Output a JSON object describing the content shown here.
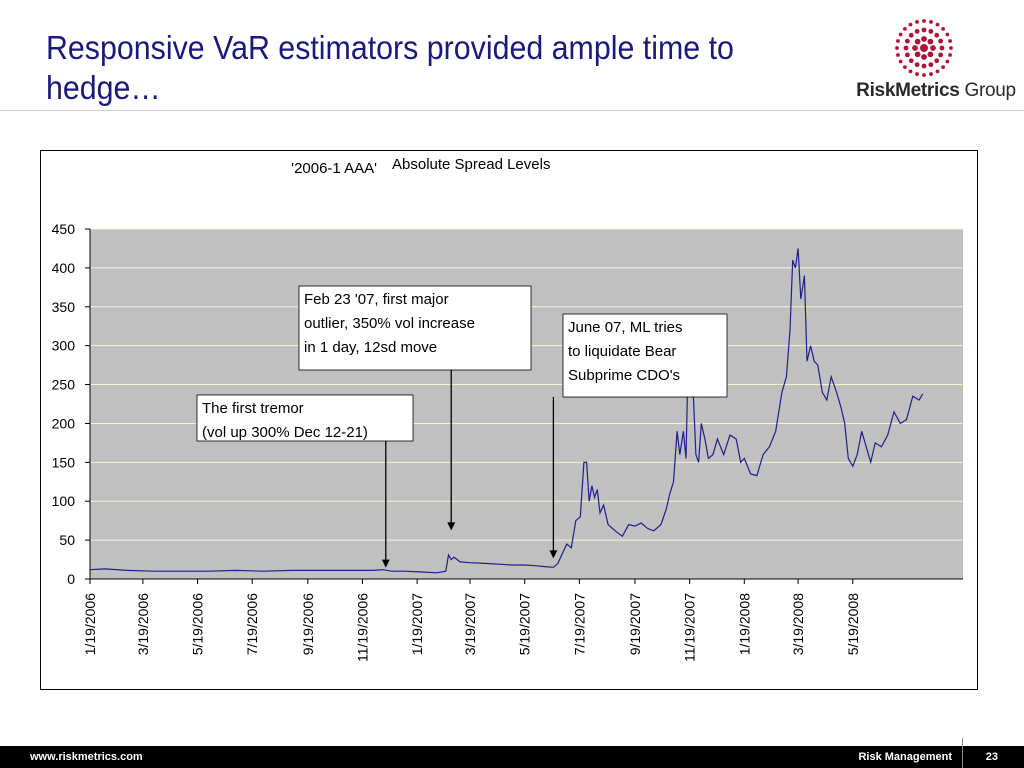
{
  "slide": {
    "title": "Responsive VaR estimators provided ample time to hedge…"
  },
  "logo": {
    "brand_bold": "RiskMetrics",
    "brand_regular": " Group",
    "color": "#b0123a"
  },
  "footer": {
    "url": "www.riskmetrics.com",
    "section": "Risk Management",
    "page": "23"
  },
  "chart_data": {
    "type": "line",
    "series_label": "'2006-1 AAA'",
    "title": "Absolute Spread Levels",
    "ylim": [
      0,
      450
    ],
    "yticks": [
      0,
      50,
      100,
      150,
      200,
      250,
      300,
      350,
      400,
      450
    ],
    "x_range": [
      "1/19/2006",
      "9/19/2008"
    ],
    "xtick_labels": [
      "1/19/2006",
      "3/19/2006",
      "5/19/2006",
      "7/19/2006",
      "9/19/2006",
      "11/19/2006",
      "1/19/2007",
      "3/19/2007",
      "5/19/2007",
      "7/19/2007",
      "9/19/2007",
      "11/19/2007",
      "1/19/2008",
      "3/19/2008",
      "5/19/2008"
    ],
    "grid": true,
    "plot_background": "#c0c0c0",
    "line_color": "#1f1f8c",
    "series": [
      {
        "values": [
          [
            "1/19/2006",
            12
          ],
          [
            "2/5/2006",
            13
          ],
          [
            "3/1/2006",
            11
          ],
          [
            "4/1/2006",
            10
          ],
          [
            "5/1/2006",
            10
          ],
          [
            "6/1/2006",
            10
          ],
          [
            "7/1/2006",
            11
          ],
          [
            "8/1/2006",
            10
          ],
          [
            "9/1/2006",
            11
          ],
          [
            "10/1/2006",
            11
          ],
          [
            "11/1/2006",
            11
          ],
          [
            "12/1/2006",
            11
          ],
          [
            "12/12/2006",
            12
          ],
          [
            "12/21/2006",
            10
          ],
          [
            "1/5/2007",
            10
          ],
          [
            "1/25/2007",
            9
          ],
          [
            "2/10/2007",
            8
          ],
          [
            "2/20/2007",
            10
          ],
          [
            "2/23/2007",
            31
          ],
          [
            "2/26/2007",
            25
          ],
          [
            "3/1/2007",
            28
          ],
          [
            "3/8/2007",
            22
          ],
          [
            "3/19/2007",
            21
          ],
          [
            "4/5/2007",
            20
          ],
          [
            "4/20/2007",
            19
          ],
          [
            "5/5/2007",
            18
          ],
          [
            "5/19/2007",
            18
          ],
          [
            "6/1/2007",
            17
          ],
          [
            "6/10/2007",
            16
          ],
          [
            "6/20/2007",
            15
          ],
          [
            "6/25/2007",
            20
          ],
          [
            "7/1/2007",
            35
          ],
          [
            "7/5/2007",
            45
          ],
          [
            "7/10/2007",
            40
          ],
          [
            "7/15/2007",
            75
          ],
          [
            "7/20/2007",
            80
          ],
          [
            "7/24/2007",
            150
          ],
          [
            "7/27/2007",
            150
          ],
          [
            "7/30/2007",
            100
          ],
          [
            "8/2/2007",
            120
          ],
          [
            "8/5/2007",
            105
          ],
          [
            "8/8/2007",
            115
          ],
          [
            "8/11/2007",
            85
          ],
          [
            "8/15/2007",
            95
          ],
          [
            "8/20/2007",
            70
          ],
          [
            "8/25/2007",
            65
          ],
          [
            "8/30/2007",
            60
          ],
          [
            "9/5/2007",
            55
          ],
          [
            "9/12/2007",
            70
          ],
          [
            "9/19/2007",
            68
          ],
          [
            "9/26/2007",
            72
          ],
          [
            "10/3/2007",
            65
          ],
          [
            "10/10/2007",
            62
          ],
          [
            "10/18/2007",
            70
          ],
          [
            "10/24/2007",
            90
          ],
          [
            "10/28/2007",
            110
          ],
          [
            "11/1/2007",
            125
          ],
          [
            "11/5/2007",
            190
          ],
          [
            "11/8/2007",
            160
          ],
          [
            "11/12/2007",
            190
          ],
          [
            "11/15/2007",
            155
          ],
          [
            "11/17/2007",
            262
          ],
          [
            "11/20/2007",
            260
          ],
          [
            "11/23/2007",
            240
          ],
          [
            "11/26/2007",
            160
          ],
          [
            "11/29/2007",
            150
          ],
          [
            "12/2/2007",
            200
          ],
          [
            "12/6/2007",
            180
          ],
          [
            "12/10/2007",
            155
          ],
          [
            "12/15/2007",
            160
          ],
          [
            "12/20/2007",
            180
          ],
          [
            "12/27/2007",
            160
          ],
          [
            "1/3/2008",
            185
          ],
          [
            "1/10/2008",
            180
          ],
          [
            "1/15/2008",
            150
          ],
          [
            "1/19/2008",
            155
          ],
          [
            "1/26/2008",
            135
          ],
          [
            "2/2/2008",
            133
          ],
          [
            "2/9/2008",
            160
          ],
          [
            "2/16/2008",
            170
          ],
          [
            "2/23/2008",
            190
          ],
          [
            "3/1/2008",
            240
          ],
          [
            "3/6/2008",
            260
          ],
          [
            "3/10/2008",
            320
          ],
          [
            "3/13/2008",
            410
          ],
          [
            "3/16/2008",
            400
          ],
          [
            "3/19/2008",
            425
          ],
          [
            "3/22/2008",
            360
          ],
          [
            "3/26/2008",
            390
          ],
          [
            "3/29/2008",
            280
          ],
          [
            "4/2/2008",
            300
          ],
          [
            "4/6/2008",
            280
          ],
          [
            "4/10/2008",
            275
          ],
          [
            "4/15/2008",
            240
          ],
          [
            "4/20/2008",
            230
          ],
          [
            "4/25/2008",
            260
          ],
          [
            "5/1/2008",
            240
          ],
          [
            "5/6/2008",
            220
          ],
          [
            "5/10/2008",
            200
          ],
          [
            "5/14/2008",
            155
          ],
          [
            "5/19/2008",
            145
          ],
          [
            "5/24/2008",
            160
          ],
          [
            "5/29/2008",
            190
          ],
          [
            "6/3/2008",
            170
          ],
          [
            "6/8/2008",
            150
          ],
          [
            "6/13/2008",
            175
          ],
          [
            "6/20/2008",
            170
          ],
          [
            "6/27/2008",
            185
          ],
          [
            "7/4/2008",
            215
          ],
          [
            "7/11/2008",
            200
          ],
          [
            "7/18/2008",
            205
          ],
          [
            "7/25/2008",
            235
          ],
          [
            "8/1/2008",
            230
          ],
          [
            "8/5/2008",
            238
          ]
        ]
      }
    ],
    "annotations": [
      {
        "text_lines": [
          "The first tremor",
          "(vol up 300% Dec 12-21)"
        ],
        "arrow_date": "12/15/2006",
        "arrow_value": 12
      },
      {
        "text_lines": [
          "Feb 23 '07, first major",
          "outlier, 350% vol increase",
          "in 1 day, 12sd move"
        ],
        "arrow_date": "2/26/2007",
        "arrow_value": 60
      },
      {
        "text_lines": [
          "June 07, ML tries",
          "to liquidate Bear",
          "Subprime CDO's"
        ],
        "arrow_date": "6/20/2007",
        "arrow_value": 24
      }
    ]
  }
}
